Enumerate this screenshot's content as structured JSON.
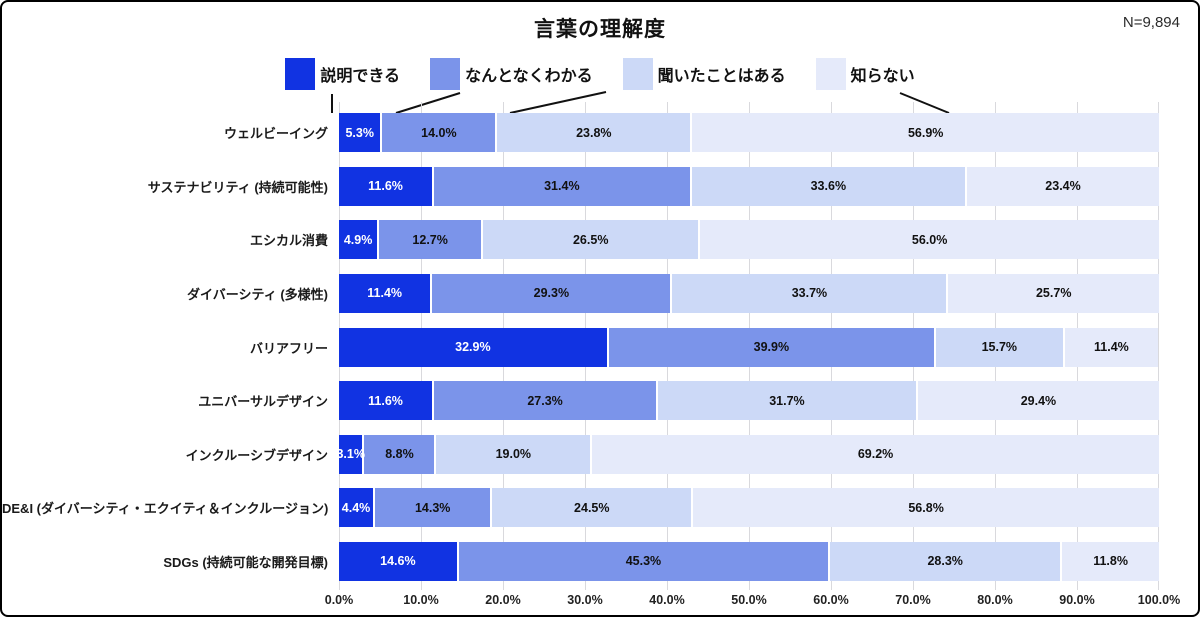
{
  "header": {
    "title": "言葉の理解度",
    "sample_size": "N=9,894"
  },
  "chart_data": {
    "type": "bar",
    "stacked": true,
    "orientation": "horizontal",
    "title": "言葉の理解度",
    "sample_size_note": "N=9,894",
    "categories": [
      "ウェルビーイング",
      "サステナビリティ (持続可能性)",
      "エシカル消費",
      "ダイバーシティ (多様性)",
      "バリアフリー",
      "ユニバーサルデザイン",
      "インクルーシブデザイン",
      "DE&I (ダイバーシティ・エクイティ＆インクルージョン)",
      "SDGs (持続可能な開発目標)"
    ],
    "series": [
      {
        "name": "説明できる",
        "color": "#1133e2",
        "label_color": "#ffffff",
        "values": [
          5.3,
          11.6,
          4.9,
          11.4,
          32.9,
          11.6,
          3.1,
          4.4,
          14.6
        ]
      },
      {
        "name": "なんとなくわかる",
        "color": "#7b94ea",
        "label_color": "#111111",
        "values": [
          14.0,
          31.4,
          12.7,
          29.3,
          39.9,
          27.3,
          8.8,
          14.3,
          45.3
        ]
      },
      {
        "name": "聞いたことはある",
        "color": "#ccd9f7",
        "label_color": "#111111",
        "values": [
          23.8,
          33.6,
          26.5,
          33.7,
          15.7,
          31.7,
          19.0,
          24.5,
          28.3
        ]
      },
      {
        "name": "知らない",
        "color": "#e5eafa",
        "label_color": "#111111",
        "values": [
          56.9,
          23.4,
          56.0,
          25.7,
          11.4,
          29.4,
          69.2,
          56.8,
          11.8
        ]
      }
    ],
    "x_ticks": [
      "0.0%",
      "10.0%",
      "20.0%",
      "30.0%",
      "40.0%",
      "50.0%",
      "60.0%",
      "70.0%",
      "80.0%",
      "90.0%",
      "100.0%"
    ],
    "xlim": [
      0,
      100
    ],
    "value_suffix": "%",
    "grid": true,
    "legend_position": "top"
  }
}
